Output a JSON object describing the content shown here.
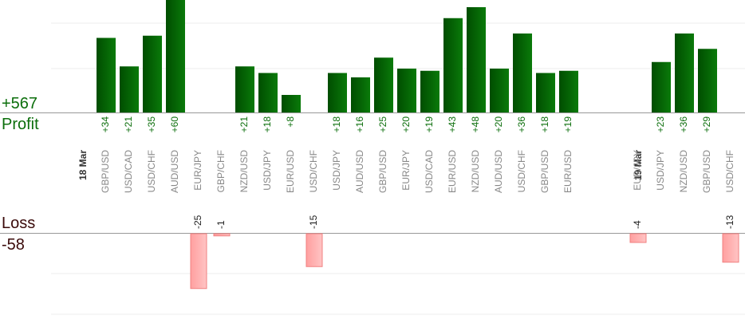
{
  "summary": {
    "profit_total": "+567",
    "profit_label": "Profit",
    "loss_label": "Loss",
    "loss_total": "-58"
  },
  "colors": {
    "profit_bar_dark": "#004d00",
    "profit_bar_light": "#0a7a0a",
    "loss_bar_fill": "#ffb3b3",
    "loss_bar_stroke": "#f08080",
    "profit_text": "#0b6e0b",
    "axis_label": "#888888",
    "gridline": "#ececec",
    "baseline": "#999999"
  },
  "chart_data": {
    "type": "bar",
    "grid": true,
    "dates": [
      {
        "label": "18 Mar",
        "index": 0
      },
      {
        "label": "19 Mar",
        "index": 24
      }
    ],
    "items": [
      {
        "pair": "GBP/USD",
        "profit": 34,
        "label": "+34"
      },
      {
        "pair": "USD/CAD",
        "profit": 21,
        "label": "+21"
      },
      {
        "pair": "USD/CHF",
        "profit": 35,
        "label": "+35"
      },
      {
        "pair": "AUD/USD",
        "profit": 60,
        "label": "+60"
      },
      {
        "pair": "EUR/JPY",
        "loss": 25,
        "label": "-25"
      },
      {
        "pair": "GBP/CHF",
        "loss": 1,
        "label": "-1"
      },
      {
        "pair": "NZD/USD",
        "profit": 21,
        "label": "+21"
      },
      {
        "pair": "USD/JPY",
        "profit": 18,
        "label": "+18"
      },
      {
        "pair": "EUR/USD",
        "profit": 8,
        "label": "+8"
      },
      {
        "pair": "USD/CHF",
        "loss": 15,
        "label": "-15"
      },
      {
        "pair": "USD/JPY",
        "profit": 18,
        "label": "+18"
      },
      {
        "pair": "AUD/USD",
        "profit": 16,
        "label": "+16"
      },
      {
        "pair": "GBP/USD",
        "profit": 25,
        "label": "+25"
      },
      {
        "pair": "EUR/JPY",
        "profit": 20,
        "label": "+20"
      },
      {
        "pair": "USD/CAD",
        "profit": 19,
        "label": "+19"
      },
      {
        "pair": "EUR/USD",
        "profit": 43,
        "label": "+43"
      },
      {
        "pair": "NZD/USD",
        "profit": 48,
        "label": "+48"
      },
      {
        "pair": "AUD/USD",
        "profit": 20,
        "label": "+20"
      },
      {
        "pair": "USD/CHF",
        "profit": 36,
        "label": "+36"
      },
      {
        "pair": "GBP/USD",
        "profit": 18,
        "label": "+18"
      },
      {
        "pair": "EUR/USD",
        "profit": 19,
        "label": "+19"
      },
      {
        "pair": "EUR/JPY",
        "loss": 4,
        "label": "-4"
      },
      {
        "pair": "USD/JPY",
        "profit": 23,
        "label": "+23"
      },
      {
        "pair": "NZD/USD",
        "profit": 36,
        "label": "+36"
      },
      {
        "pair": "GBP/USD",
        "profit": 29,
        "label": "+29"
      },
      {
        "pair": "USD/CHF",
        "loss": 13,
        "label": "-13"
      }
    ]
  }
}
